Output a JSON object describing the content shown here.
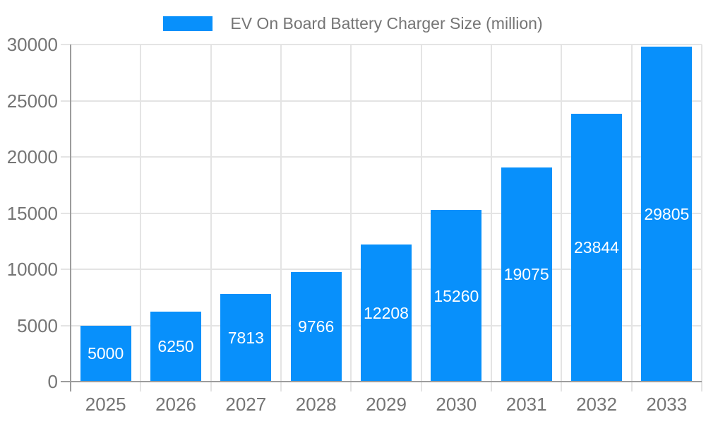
{
  "chart_data": {
    "type": "bar",
    "title": "EV On Board Battery Charger Size (million)",
    "legend_position": "top",
    "legend_entries": [
      "EV On Board Battery Charger Size (million)"
    ],
    "categories": [
      "2025",
      "2026",
      "2027",
      "2028",
      "2029",
      "2030",
      "2031",
      "2032",
      "2033"
    ],
    "series": [
      {
        "name": "EV On Board Battery Charger Size (million)",
        "values": [
          5000,
          6250,
          7813,
          9766,
          12208,
          15260,
          19075,
          23844,
          29805
        ]
      }
    ],
    "bar_value_labels": [
      "5000",
      "6250",
      "7813",
      "9766",
      "12208",
      "15260",
      "19075",
      "23844",
      "29805"
    ],
    "xlabel": "",
    "ylabel": "",
    "ylim": [
      0,
      30000
    ],
    "yticks": [
      0,
      5000,
      10000,
      15000,
      20000,
      25000,
      30000
    ],
    "grid": true,
    "colors": {
      "bar": "#0890FB",
      "bar_label": "#FFFFFF",
      "grid_line": "#E4E4E4",
      "axis_line": "#9C9C9C",
      "tick_label": "#757575",
      "legend_text": "#757575",
      "background": "#FFFFFF"
    }
  }
}
